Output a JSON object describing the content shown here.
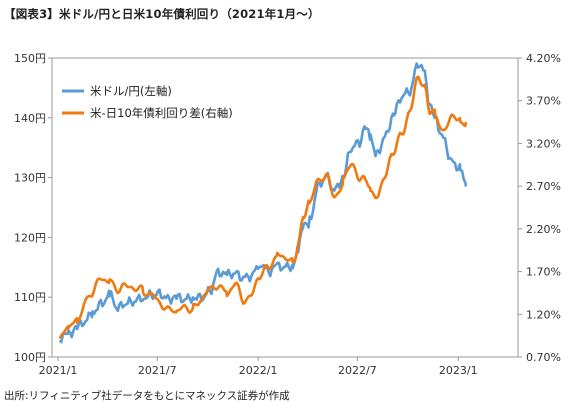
{
  "title": "【図表3】米ドル/円と日米10年債利回り（2021年1月〜）",
  "source": "出所:リフィニティブ社データをもとにマネックス証券が作成",
  "colors": {
    "usdjpy": "#5B9BD5",
    "spread": "#F07A10",
    "axis": "#999999"
  },
  "chart_data": {
    "type": "line",
    "title": "【図表3】米ドル/円と日米10年債利回り（2021年1月〜）",
    "xlabel": "",
    "x_ticks": [
      "2021/1",
      "2021/7",
      "2022/1",
      "2022/7",
      "2023/1"
    ],
    "y_left": {
      "ticks": [
        "100円",
        "110円",
        "120円",
        "130円",
        "140円",
        "150円"
      ],
      "lim": [
        100,
        150
      ]
    },
    "y_right": {
      "ticks": [
        "0.70%",
        "1.20%",
        "1.70%",
        "2.20%",
        "2.70%",
        "3.20%",
        "3.70%",
        "4.20%"
      ],
      "lim": [
        0.7,
        4.2
      ]
    },
    "legend": {
      "position": "top-left"
    },
    "grid": false,
    "series": [
      {
        "name": "米ドル/円(左軸)",
        "axis": "left",
        "x": [
          "2021/1/4",
          "2021/1/20",
          "2021/2/5",
          "2021/2/20",
          "2021/3/5",
          "2021/3/20",
          "2021/4/5",
          "2021/4/20",
          "2021/5/5",
          "2021/5/20",
          "2021/6/5",
          "2021/6/20",
          "2021/7/5",
          "2021/7/20",
          "2021/8/5",
          "2021/8/20",
          "2021/9/5",
          "2021/9/20",
          "2021/10/5",
          "2021/10/20",
          "2021/11/5",
          "2021/11/20",
          "2021/12/5",
          "2021/12/20",
          "2022/1/5",
          "2022/1/20",
          "2022/2/5",
          "2022/2/20",
          "2022/3/5",
          "2022/3/15",
          "2022/3/25",
          "2022/4/5",
          "2022/4/20",
          "2022/5/5",
          "2022/5/20",
          "2022/6/5",
          "2022/6/20",
          "2022/7/5",
          "2022/7/15",
          "2022/7/25",
          "2022/8/5",
          "2022/8/20",
          "2022/9/5",
          "2022/9/20",
          "2022/10/5",
          "2022/10/20",
          "2022/11/1",
          "2022/11/10",
          "2022/11/20",
          "2022/12/5",
          "2022/12/20",
          "2023/1/5",
          "2023/1/15"
        ],
        "values": [
          103.2,
          103.8,
          105.0,
          106.0,
          107.5,
          108.8,
          110.3,
          108.2,
          109.0,
          109.3,
          110.0,
          110.3,
          110.6,
          109.7,
          110.0,
          109.6,
          110.0,
          109.9,
          111.0,
          114.2,
          113.7,
          114.0,
          113.2,
          113.6,
          115.7,
          114.3,
          115.2,
          115.0,
          115.3,
          118.0,
          122.0,
          122.6,
          128.5,
          130.2,
          127.8,
          130.0,
          135.0,
          135.9,
          138.5,
          136.5,
          133.8,
          136.7,
          140.5,
          143.6,
          144.5,
          149.2,
          147.5,
          142.0,
          139.8,
          136.5,
          132.6,
          131.5,
          128.5
        ]
      },
      {
        "name": "米-日10年債利回り差(右軸)",
        "axis": "right",
        "x": [
          "2021/1/4",
          "2021/1/20",
          "2021/2/5",
          "2021/2/20",
          "2021/3/5",
          "2021/3/20",
          "2021/4/5",
          "2021/4/20",
          "2021/5/5",
          "2021/5/20",
          "2021/6/5",
          "2021/6/20",
          "2021/7/5",
          "2021/7/20",
          "2021/8/5",
          "2021/8/20",
          "2021/9/5",
          "2021/9/20",
          "2021/10/5",
          "2021/10/20",
          "2021/11/5",
          "2021/11/20",
          "2021/12/5",
          "2021/12/20",
          "2022/1/5",
          "2022/1/20",
          "2022/2/5",
          "2022/2/20",
          "2022/3/5",
          "2022/3/15",
          "2022/3/25",
          "2022/4/5",
          "2022/4/20",
          "2022/5/5",
          "2022/5/20",
          "2022/6/5",
          "2022/6/20",
          "2022/7/5",
          "2022/7/15",
          "2022/7/25",
          "2022/8/5",
          "2022/8/20",
          "2022/9/5",
          "2022/9/20",
          "2022/10/5",
          "2022/10/20",
          "2022/11/1",
          "2022/11/10",
          "2022/11/20",
          "2022/12/5",
          "2022/12/20",
          "2023/1/5",
          "2023/1/15"
        ],
        "values": [
          0.9,
          1.05,
          1.12,
          1.33,
          1.45,
          1.62,
          1.6,
          1.5,
          1.52,
          1.52,
          1.48,
          1.42,
          1.35,
          1.25,
          1.22,
          1.28,
          1.27,
          1.4,
          1.48,
          1.55,
          1.45,
          1.55,
          1.37,
          1.42,
          1.65,
          1.75,
          1.9,
          1.88,
          1.8,
          2.0,
          2.35,
          2.5,
          2.75,
          2.85,
          2.55,
          2.75,
          3.0,
          2.75,
          2.8,
          2.65,
          2.6,
          2.8,
          3.1,
          3.3,
          3.6,
          3.95,
          3.9,
          3.55,
          3.55,
          3.3,
          3.55,
          3.45,
          3.45
        ]
      }
    ]
  }
}
